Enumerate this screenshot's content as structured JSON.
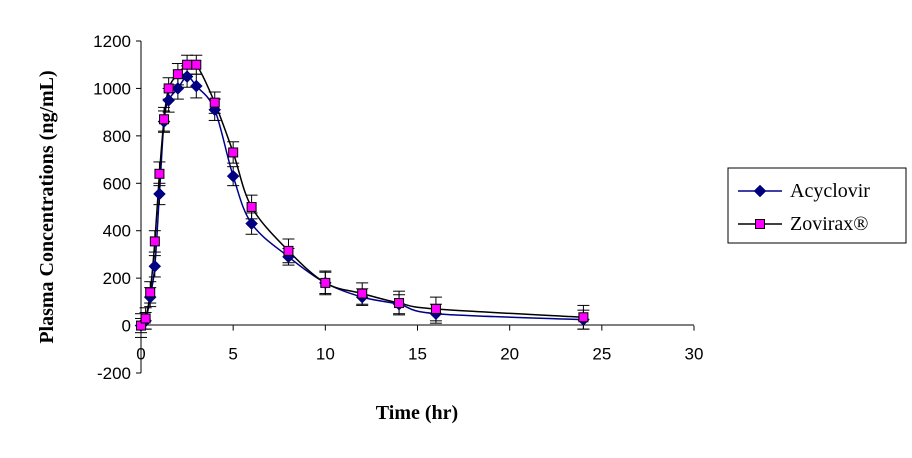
{
  "chart_data": {
    "type": "line",
    "title": "",
    "xlabel": "Time (hr)",
    "ylabel": "Plasma Concentrations (ng/mL)",
    "xlim": [
      0,
      30
    ],
    "ylim": [
      -200,
      1200
    ],
    "xticks": [
      0,
      5,
      10,
      15,
      20,
      25,
      30
    ],
    "yticks": [
      -200,
      0,
      200,
      400,
      600,
      800,
      1000,
      1200
    ],
    "grid": false,
    "legend_position": "right",
    "error_bars": true,
    "series": [
      {
        "name": "Acyclovir",
        "color": "#00008B",
        "marker": "diamond",
        "marker_color": "#000080",
        "x": [
          0,
          0.25,
          0.5,
          0.75,
          1,
          1.25,
          1.5,
          2,
          2.5,
          3,
          4,
          5,
          6,
          8,
          10,
          12,
          14,
          16,
          24
        ],
        "y": [
          0,
          20,
          120,
          250,
          555,
          860,
          950,
          1000,
          1050,
          1010,
          910,
          630,
          430,
          290,
          180,
          120,
          90,
          50,
          25
        ],
        "err": [
          30,
          35,
          40,
          45,
          45,
          45,
          50,
          45,
          45,
          50,
          45,
          40,
          45,
          35,
          45,
          35,
          40,
          40,
          40
        ]
      },
      {
        "name": "Zovirax®",
        "color": "#000000",
        "marker": "square",
        "marker_color": "#FF00FF",
        "x": [
          0,
          0.25,
          0.5,
          0.75,
          1,
          1.25,
          1.5,
          2,
          2.5,
          3,
          4,
          5,
          6,
          8,
          10,
          12,
          14,
          16,
          24
        ],
        "y": [
          0,
          30,
          140,
          355,
          640,
          870,
          1000,
          1060,
          1100,
          1100,
          940,
          730,
          500,
          315,
          180,
          135,
          95,
          70,
          35
        ],
        "err": [
          50,
          45,
          45,
          45,
          50,
          50,
          45,
          45,
          40,
          40,
          45,
          45,
          50,
          50,
          50,
          45,
          50,
          50,
          50
        ]
      }
    ]
  }
}
